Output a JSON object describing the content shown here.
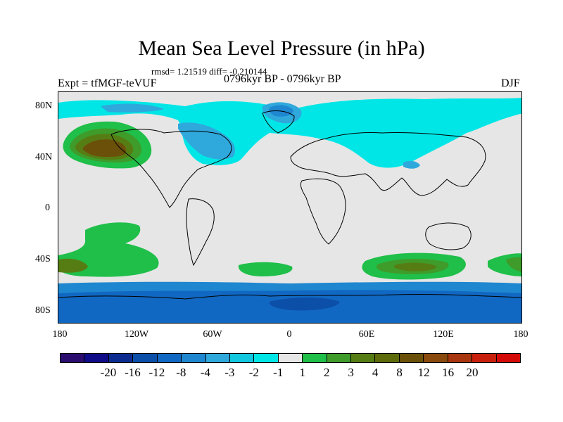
{
  "title": "Mean Sea Level Pressure (in hPa)",
  "stats": "rmsd= 1.21519  diff= -0.210144",
  "experiment": "Expt = tfMGF-teVUF",
  "period": "0796kyr BP - 0796kyr BP",
  "season": "DJF",
  "y_axis_labels": [
    "80N",
    "40N",
    "0",
    "40S",
    "80S"
  ],
  "x_axis_labels": [
    "180",
    "120W",
    "60W",
    "0",
    "60E",
    "120E",
    "180"
  ],
  "colorbar": {
    "colors": [
      "#2a0d6e",
      "#100b87",
      "#0c2c8f",
      "#0c4fa8",
      "#1168c2",
      "#1f87d0",
      "#2fa8dc",
      "#14c7e0",
      "#00e6e6",
      "#e6e6e6",
      "#1fbf49",
      "#3f9b2a",
      "#567d14",
      "#5d6b0a",
      "#6b500a",
      "#8a4a0e",
      "#a8360e",
      "#c8200c",
      "#d40a08"
    ],
    "labels": [
      "-20",
      "-16",
      "-12",
      "-8",
      "-4",
      "-3",
      "-2",
      "-1",
      "1",
      "2",
      "3",
      "4",
      "8",
      "12",
      "16",
      "20"
    ]
  },
  "chart_data": {
    "type": "map",
    "variable": "Mean Sea Level Pressure difference",
    "units": "hPa",
    "season": "DJF",
    "rmsd": 1.21519,
    "diff": -0.210144,
    "lon_range": [
      -180,
      180
    ],
    "lat_range": [
      -90,
      90
    ],
    "contour_levels": [
      -20,
      -16,
      -12,
      -8,
      -4,
      -3,
      -2,
      -1,
      1,
      2,
      3,
      4,
      8,
      12,
      16,
      20
    ],
    "features": [
      {
        "name": "North Pacific high anomaly",
        "center": [
          -150,
          48
        ],
        "level_range": [
          2,
          8
        ]
      },
      {
        "name": "Arctic / Canada low anomaly",
        "center": [
          -70,
          60
        ],
        "level_range": [
          -4,
          -1
        ]
      },
      {
        "name": "Siberian low anomaly",
        "center": [
          60,
          55
        ],
        "level_range": [
          -3,
          -1
        ]
      },
      {
        "name": "Southern Ocean high band",
        "center": [
          0,
          -45
        ],
        "level_range": [
          1,
          4
        ]
      },
      {
        "name": "Antarctic low anomaly",
        "center": [
          0,
          -75
        ],
        "level_range": [
          -8,
          -2
        ]
      }
    ]
  }
}
